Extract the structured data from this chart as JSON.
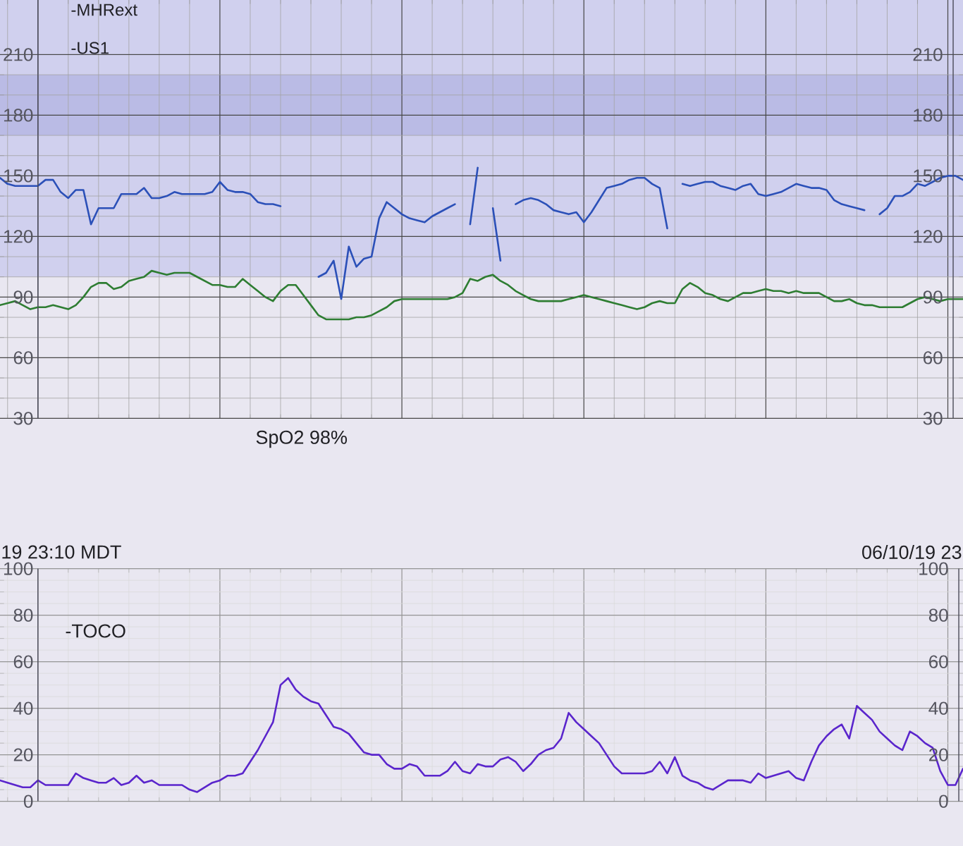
{
  "chart_data": [
    {
      "type": "line",
      "categories": [
        null,
        null,
        null,
        null,
        null,
        null,
        null,
        null,
        null,
        null,
        null,
        null,
        null,
        null,
        null,
        null,
        null,
        null,
        null,
        null,
        null,
        null,
        null,
        null,
        null,
        null,
        null,
        null,
        null,
        null,
        null,
        null,
        null,
        null,
        null,
        null,
        null,
        null,
        null,
        null,
        null,
        null,
        null,
        null,
        null,
        null,
        null,
        null,
        null,
        null,
        null,
        null,
        null,
        null,
        null,
        null,
        null,
        null,
        null,
        null,
        null,
        null,
        null,
        null,
        null,
        null,
        null,
        null,
        null,
        null,
        null,
        null,
        null,
        null,
        null,
        null,
        null,
        null,
        null,
        null,
        null,
        null,
        null,
        null,
        null,
        null,
        null,
        null,
        null,
        null,
        null,
        null,
        null,
        null,
        null,
        null,
        null,
        null,
        null,
        null,
        null,
        null,
        null,
        null,
        null,
        null,
        null,
        null,
        null,
        null,
        null,
        null,
        null,
        null,
        null,
        null,
        null,
        null,
        null,
        null,
        null,
        null,
        null,
        null,
        null,
        null,
        null,
        null
      ],
      "series": [
        {
          "color": "#2b50b8",
          "values": [
            149,
            146,
            145,
            145,
            145,
            145,
            148,
            148,
            142,
            139,
            143,
            143,
            126,
            134,
            134,
            134,
            141,
            141,
            141,
            144,
            139,
            139,
            140,
            142,
            141,
            141,
            141,
            141,
            142,
            147,
            143,
            142,
            142,
            141,
            137,
            136,
            136,
            135,
            null,
            null,
            null,
            null,
            100,
            102,
            108,
            89,
            115,
            105,
            109,
            110,
            129,
            137,
            134,
            131,
            129,
            128,
            127,
            130,
            132,
            134,
            136,
            null,
            126,
            154,
            null,
            134,
            108,
            null,
            136,
            138,
            139,
            138,
            136,
            133,
            132,
            131,
            132,
            127,
            132,
            138,
            144,
            145,
            146,
            148,
            149,
            149,
            146,
            144,
            124,
            null,
            146,
            145,
            146,
            147,
            147,
            145,
            144,
            143,
            145,
            146,
            141,
            140,
            141,
            142,
            144,
            146,
            145,
            144,
            144,
            143,
            138,
            136,
            135,
            134,
            133,
            null,
            131,
            134,
            140,
            140,
            142,
            146,
            145,
            147,
            149,
            150,
            150,
            148
          ]
        },
        {
          "color": "#2e7d32",
          "values": [
            86,
            87,
            88,
            86,
            84,
            85,
            85,
            86,
            85,
            84,
            86,
            90,
            95,
            97,
            97,
            94,
            95,
            98,
            99,
            100,
            103,
            102,
            101,
            102,
            102,
            102,
            100,
            98,
            96,
            96,
            95,
            95,
            99,
            96,
            93,
            90,
            88,
            93,
            96,
            96,
            91,
            86,
            81,
            79,
            79,
            79,
            79,
            80,
            80,
            81,
            83,
            85,
            88,
            89,
            89,
            89,
            89,
            89,
            89,
            89,
            90,
            92,
            99,
            98,
            100,
            101,
            98,
            96,
            93,
            91,
            89,
            88,
            88,
            88,
            88,
            89,
            90,
            91,
            90,
            89,
            88,
            87,
            86,
            85,
            84,
            85,
            87,
            88,
            87,
            87,
            94,
            97,
            95,
            92,
            91,
            89,
            88,
            90,
            92,
            92,
            93,
            94,
            93,
            93,
            92,
            93,
            92,
            92,
            92,
            90,
            88,
            88,
            89,
            87,
            86,
            86,
            85,
            85,
            85,
            85,
            87,
            89,
            90,
            89,
            88,
            89,
            89,
            89
          ]
        }
      ],
      "ylim": [
        30,
        237
      ],
      "yticks": [
        30,
        60,
        90,
        120,
        150,
        180,
        210
      ],
      "y2lim": [
        30,
        237
      ],
      "y2ticks": [
        30,
        60,
        90,
        120,
        150,
        180,
        210
      ],
      "grid": true,
      "bands": [
        {
          "axis": "y",
          "from": 100,
          "to": 237,
          "color": "#d0d0ee"
        },
        {
          "axis": "y",
          "from": 170,
          "to": 200,
          "color": "#babbe5"
        }
      ],
      "annotations": [
        "-MHRext",
        "-US1"
      ]
    },
    {
      "type": "line",
      "categories": [
        null,
        null,
        null,
        null,
        null,
        null,
        null,
        null,
        null,
        null,
        null,
        null,
        null,
        null,
        null,
        null,
        null,
        null,
        null,
        null,
        null,
        null,
        null,
        null,
        null,
        null,
        null,
        null,
        null,
        null,
        null,
        null,
        null,
        null,
        null,
        null,
        null,
        null,
        null,
        null,
        null,
        null,
        null,
        null,
        null,
        null,
        null,
        null,
        null,
        null,
        null,
        null,
        null,
        null,
        null,
        null,
        null,
        null,
        null,
        null,
        null,
        null,
        null,
        null,
        null,
        null,
        null,
        null,
        null,
        null,
        null,
        null,
        null,
        null,
        null,
        null,
        null,
        null,
        null,
        null,
        null,
        null,
        null,
        null,
        null,
        null,
        null,
        null,
        null,
        null,
        null,
        null,
        null,
        null,
        null,
        null,
        null,
        null,
        null,
        null,
        null,
        null,
        null,
        null,
        null,
        null,
        null,
        null,
        null,
        null,
        null,
        null,
        null,
        null,
        null,
        null,
        null,
        null,
        null,
        null,
        null,
        null,
        null,
        null,
        null,
        null,
        null,
        null
      ],
      "series": [
        {
          "color": "#5a25cc",
          "values": [
            9,
            8,
            7,
            6,
            6,
            9,
            7,
            7,
            7,
            7,
            12,
            10,
            9,
            8,
            8,
            10,
            7,
            8,
            11,
            8,
            9,
            7,
            7,
            7,
            7,
            5,
            4,
            6,
            8,
            9,
            11,
            11,
            12,
            17,
            22,
            28,
            34,
            50,
            53,
            48,
            45,
            43,
            42,
            37,
            32,
            31,
            29,
            25,
            21,
            20,
            20,
            16,
            14,
            14,
            16,
            15,
            11,
            11,
            11,
            13,
            17,
            13,
            12,
            16,
            15,
            15,
            18,
            19,
            17,
            13,
            16,
            20,
            22,
            23,
            27,
            38,
            34,
            31,
            28,
            25,
            20,
            15,
            12,
            12,
            12,
            12,
            13,
            17,
            12,
            19,
            11,
            9,
            8,
            6,
            5,
            7,
            9,
            9,
            9,
            8,
            12,
            10,
            11,
            12,
            13,
            10,
            9,
            17,
            24,
            28,
            31,
            33,
            27,
            41,
            38,
            35,
            30,
            27,
            24,
            22,
            30,
            28,
            25,
            23,
            13,
            7,
            7,
            14
          ]
        }
      ],
      "ylim": [
        0,
        100
      ],
      "yticks": [
        0,
        20,
        40,
        60,
        80,
        100
      ],
      "y2lim": [
        0,
        100
      ],
      "y2ticks": [
        0,
        20,
        40,
        60,
        80,
        100
      ],
      "grid": true,
      "annotations": [
        "SpO2 98%",
        "19 23:10 MDT",
        "06/10/19 23",
        "-TOCO"
      ]
    }
  ]
}
